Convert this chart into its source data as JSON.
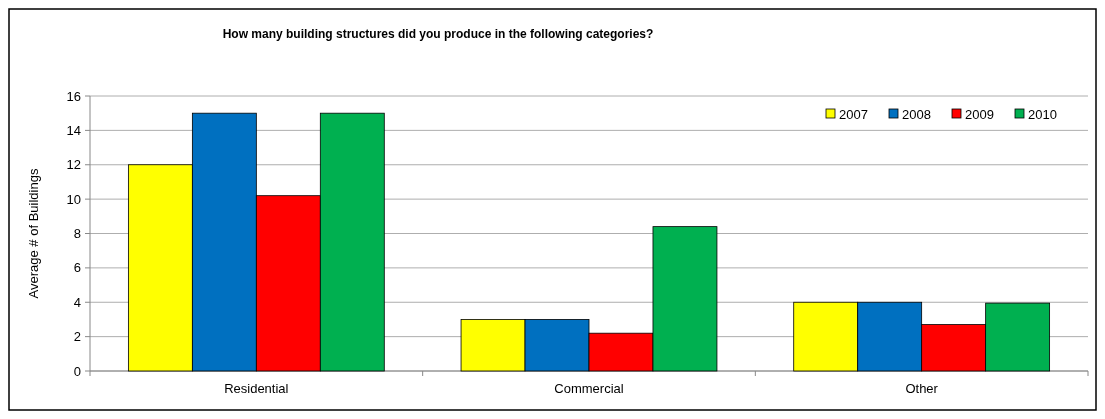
{
  "chart_data": {
    "type": "bar",
    "title": "How many building structures did you produce in the following categories?",
    "ylabel": "Average # of Buildings",
    "categories": [
      "Residential",
      "Commercial",
      "Other"
    ],
    "series": [
      {
        "name": "2007",
        "color": "#ffff00",
        "values": [
          12,
          3,
          4
        ]
      },
      {
        "name": "2008",
        "color": "#0070c0",
        "values": [
          15,
          3,
          4
        ]
      },
      {
        "name": "2009",
        "color": "#ff0000",
        "values": [
          10.2,
          2.2,
          2.7
        ]
      },
      {
        "name": "2010",
        "color": "#00b050",
        "values": [
          15,
          8.4,
          3.95
        ]
      }
    ],
    "ylim": [
      0,
      16
    ],
    "yticks": [
      0,
      2,
      4,
      6,
      8,
      10,
      12,
      14,
      16
    ],
    "grid": "y",
    "legend": "top right"
  }
}
